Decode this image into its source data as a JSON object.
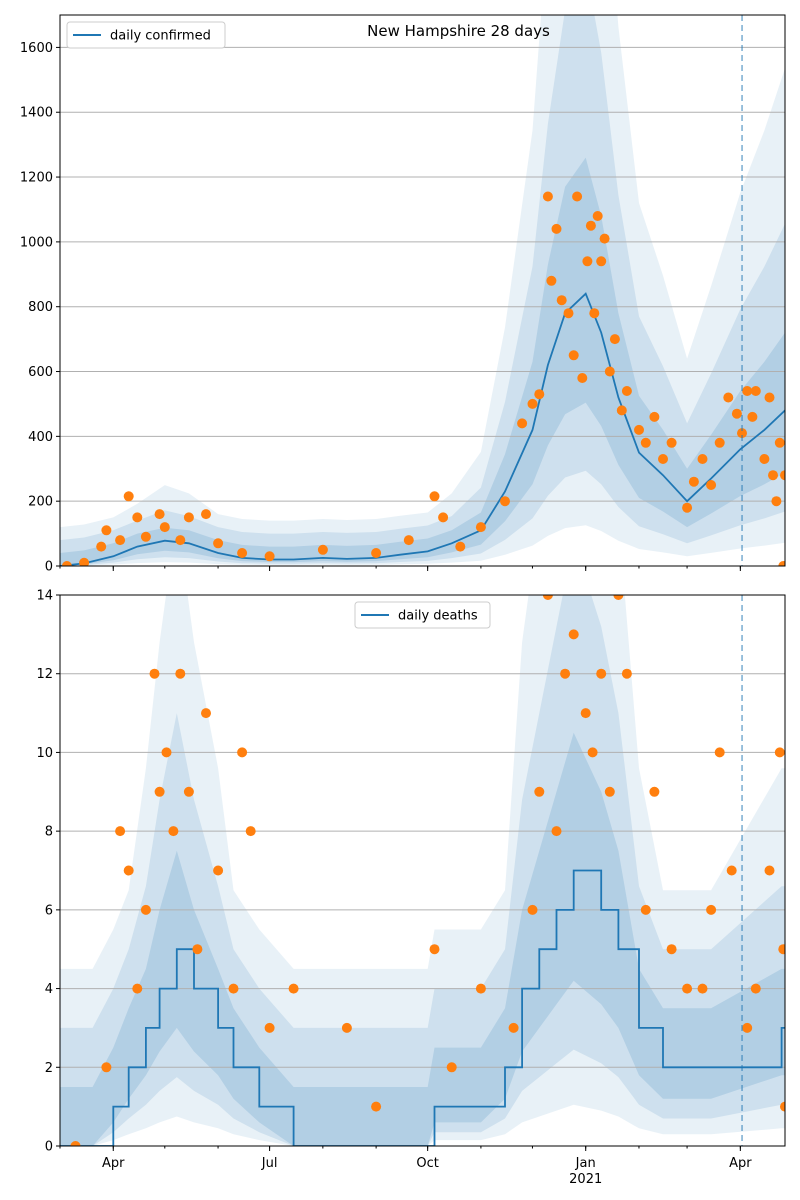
{
  "chart_data": [
    {
      "type": "line",
      "title": "New Hampshire 28 days",
      "legend": {
        "placement": "top-left",
        "entries": [
          "daily confirmed"
        ]
      },
      "ylim": [
        0,
        1700
      ],
      "yticks": [
        0,
        200,
        400,
        600,
        800,
        1000,
        1200,
        1400,
        1600
      ],
      "grid": "horizontal",
      "x_range": [
        "2020-03-01",
        "2021-04-27"
      ],
      "xticks": [
        {
          "date": "2020-04-01",
          "label": "Apr"
        },
        {
          "date": "2020-07-01",
          "label": "Jul"
        },
        {
          "date": "2020-10-01",
          "label": "Oct"
        },
        {
          "date": "2021-01-01",
          "label": "Jan"
        },
        {
          "date": "2021-04-01",
          "label": "Apr"
        }
      ],
      "year_label": "2021",
      "vline_date": "2021-04-02",
      "series": [
        {
          "name": "daily confirmed",
          "kind": "line",
          "color": "#1f77b4",
          "points": [
            [
              "2020-03-01",
              0
            ],
            [
              "2020-03-15",
              8
            ],
            [
              "2020-04-01",
              30
            ],
            [
              "2020-04-15",
              60
            ],
            [
              "2020-05-01",
              78
            ],
            [
              "2020-05-15",
              70
            ],
            [
              "2020-06-01",
              40
            ],
            [
              "2020-06-15",
              25
            ],
            [
              "2020-07-01",
              20
            ],
            [
              "2020-07-15",
              20
            ],
            [
              "2020-08-01",
              25
            ],
            [
              "2020-08-15",
              22
            ],
            [
              "2020-09-01",
              25
            ],
            [
              "2020-09-15",
              35
            ],
            [
              "2020-10-01",
              45
            ],
            [
              "2020-10-15",
              70
            ],
            [
              "2020-11-01",
              110
            ],
            [
              "2020-11-15",
              230
            ],
            [
              "2020-12-01",
              420
            ],
            [
              "2020-12-10",
              620
            ],
            [
              "2020-12-20",
              780
            ],
            [
              "2021-01-01",
              840
            ],
            [
              "2021-01-10",
              720
            ],
            [
              "2021-01-20",
              520
            ],
            [
              "2021-02-01",
              350
            ],
            [
              "2021-02-15",
              280
            ],
            [
              "2021-03-01",
              200
            ],
            [
              "2021-03-15",
              270
            ],
            [
              "2021-04-01",
              360
            ],
            [
              "2021-04-15",
              420
            ],
            [
              "2021-04-27",
              480
            ]
          ]
        },
        {
          "name": "",
          "kind": "scatter",
          "color": "#ff7f0e",
          "points": [
            [
              "2020-03-05",
              0
            ],
            [
              "2020-03-15",
              10
            ],
            [
              "2020-03-25",
              60
            ],
            [
              "2020-03-28",
              110
            ],
            [
              "2020-04-05",
              80
            ],
            [
              "2020-04-10",
              215
            ],
            [
              "2020-04-15",
              150
            ],
            [
              "2020-04-20",
              90
            ],
            [
              "2020-04-28",
              160
            ],
            [
              "2020-05-01",
              120
            ],
            [
              "2020-05-10",
              80
            ],
            [
              "2020-05-15",
              150
            ],
            [
              "2020-05-25",
              160
            ],
            [
              "2020-06-01",
              70
            ],
            [
              "2020-06-15",
              40
            ],
            [
              "2020-07-01",
              30
            ],
            [
              "2020-08-01",
              50
            ],
            [
              "2020-09-01",
              40
            ],
            [
              "2020-09-20",
              80
            ],
            [
              "2020-10-05",
              215
            ],
            [
              "2020-10-10",
              150
            ],
            [
              "2020-10-20",
              60
            ],
            [
              "2020-11-01",
              120
            ],
            [
              "2020-11-15",
              200
            ],
            [
              "2020-11-25",
              440
            ],
            [
              "2020-12-01",
              500
            ],
            [
              "2020-12-05",
              530
            ],
            [
              "2020-12-10",
              1140
            ],
            [
              "2020-12-12",
              880
            ],
            [
              "2020-12-15",
              1040
            ],
            [
              "2020-12-18",
              820
            ],
            [
              "2020-12-22",
              780
            ],
            [
              "2020-12-25",
              650
            ],
            [
              "2020-12-27",
              1140
            ],
            [
              "2020-12-30",
              580
            ],
            [
              "2021-01-02",
              940
            ],
            [
              "2021-01-04",
              1050
            ],
            [
              "2021-01-06",
              780
            ],
            [
              "2021-01-08",
              1080
            ],
            [
              "2021-01-10",
              940
            ],
            [
              "2021-01-12",
              1010
            ],
            [
              "2021-01-15",
              600
            ],
            [
              "2021-01-18",
              700
            ],
            [
              "2021-01-22",
              480
            ],
            [
              "2021-01-25",
              540
            ],
            [
              "2021-02-01",
              420
            ],
            [
              "2021-02-05",
              380
            ],
            [
              "2021-02-10",
              460
            ],
            [
              "2021-02-15",
              330
            ],
            [
              "2021-02-20",
              380
            ],
            [
              "2021-03-01",
              180
            ],
            [
              "2021-03-05",
              260
            ],
            [
              "2021-03-10",
              330
            ],
            [
              "2021-03-15",
              250
            ],
            [
              "2021-03-20",
              380
            ],
            [
              "2021-03-25",
              520
            ],
            [
              "2021-03-30",
              470
            ],
            [
              "2021-04-02",
              410
            ],
            [
              "2021-04-05",
              540
            ],
            [
              "2021-04-08",
              460
            ],
            [
              "2021-04-10",
              540
            ],
            [
              "2021-04-15",
              330
            ],
            [
              "2021-04-18",
              520
            ],
            [
              "2021-04-20",
              280
            ],
            [
              "2021-04-22",
              200
            ],
            [
              "2021-04-24",
              380
            ],
            [
              "2021-04-26",
              0
            ],
            [
              "2021-04-27",
              280
            ]
          ]
        }
      ]
    },
    {
      "type": "line",
      "title": "",
      "legend": {
        "placement": "top-center",
        "entries": [
          "daily deaths"
        ]
      },
      "ylim": [
        0,
        14
      ],
      "yticks": [
        0,
        2,
        4,
        6,
        8,
        10,
        12,
        14
      ],
      "grid": "horizontal",
      "x_range": [
        "2020-03-01",
        "2021-04-27"
      ],
      "xticks": [
        {
          "date": "2020-04-01",
          "label": "Apr"
        },
        {
          "date": "2020-07-01",
          "label": "Jul"
        },
        {
          "date": "2020-10-01",
          "label": "Oct"
        },
        {
          "date": "2021-01-01",
          "label": "Jan"
        },
        {
          "date": "2021-04-01",
          "label": "Apr"
        }
      ],
      "year_label": "2021",
      "vline_date": "2021-04-02",
      "series": [
        {
          "name": "daily deaths",
          "kind": "step",
          "color": "#1f77b4",
          "points": [
            [
              "2020-03-01",
              0
            ],
            [
              "2020-03-20",
              0
            ],
            [
              "2020-04-01",
              1
            ],
            [
              "2020-04-10",
              2
            ],
            [
              "2020-04-20",
              3
            ],
            [
              "2020-04-28",
              4
            ],
            [
              "2020-05-08",
              5
            ],
            [
              "2020-05-18",
              4
            ],
            [
              "2020-06-01",
              3
            ],
            [
              "2020-06-10",
              2
            ],
            [
              "2020-06-25",
              1
            ],
            [
              "2020-07-15",
              0
            ],
            [
              "2020-08-01",
              0
            ],
            [
              "2020-10-01",
              0
            ],
            [
              "2020-10-05",
              1
            ],
            [
              "2020-11-01",
              1
            ],
            [
              "2020-11-15",
              2
            ],
            [
              "2020-11-25",
              4
            ],
            [
              "2020-12-05",
              5
            ],
            [
              "2020-12-15",
              6
            ],
            [
              "2020-12-25",
              7
            ],
            [
              "2021-01-10",
              6
            ],
            [
              "2021-01-20",
              5
            ],
            [
              "2021-02-01",
              3
            ],
            [
              "2021-02-15",
              2
            ],
            [
              "2021-03-15",
              2
            ],
            [
              "2021-04-25",
              3
            ],
            [
              "2021-04-27",
              3
            ]
          ]
        },
        {
          "name": "",
          "kind": "scatter",
          "color": "#ff7f0e",
          "points": [
            [
              "2020-03-10",
              0
            ],
            [
              "2020-03-28",
              2
            ],
            [
              "2020-04-05",
              8
            ],
            [
              "2020-04-10",
              7
            ],
            [
              "2020-04-15",
              4
            ],
            [
              "2020-04-20",
              6
            ],
            [
              "2020-04-25",
              12
            ],
            [
              "2020-04-28",
              9
            ],
            [
              "2020-05-02",
              10
            ],
            [
              "2020-05-06",
              8
            ],
            [
              "2020-05-10",
              12
            ],
            [
              "2020-05-15",
              9
            ],
            [
              "2020-05-20",
              5
            ],
            [
              "2020-05-25",
              11
            ],
            [
              "2020-06-01",
              7
            ],
            [
              "2020-06-10",
              4
            ],
            [
              "2020-06-15",
              10
            ],
            [
              "2020-06-20",
              8
            ],
            [
              "2020-07-01",
              3
            ],
            [
              "2020-07-15",
              4
            ],
            [
              "2020-08-15",
              3
            ],
            [
              "2020-09-01",
              1
            ],
            [
              "2020-10-05",
              5
            ],
            [
              "2020-10-15",
              2
            ],
            [
              "2020-11-01",
              4
            ],
            [
              "2020-11-20",
              3
            ],
            [
              "2020-12-01",
              6
            ],
            [
              "2020-12-05",
              9
            ],
            [
              "2020-12-10",
              14
            ],
            [
              "2020-12-15",
              8
            ],
            [
              "2020-12-20",
              12
            ],
            [
              "2020-12-25",
              13
            ],
            [
              "2021-01-01",
              11
            ],
            [
              "2021-01-05",
              10
            ],
            [
              "2021-01-10",
              12
            ],
            [
              "2021-01-15",
              9
            ],
            [
              "2021-01-20",
              14
            ],
            [
              "2021-01-25",
              12
            ],
            [
              "2021-02-05",
              6
            ],
            [
              "2021-02-10",
              9
            ],
            [
              "2021-02-20",
              5
            ],
            [
              "2021-03-01",
              4
            ],
            [
              "2021-03-10",
              4
            ],
            [
              "2021-03-15",
              6
            ],
            [
              "2021-03-20",
              10
            ],
            [
              "2021-03-27",
              7
            ],
            [
              "2021-04-05",
              3
            ],
            [
              "2021-04-10",
              4
            ],
            [
              "2021-04-18",
              7
            ],
            [
              "2021-04-24",
              10
            ],
            [
              "2021-04-26",
              5
            ],
            [
              "2021-04-27",
              1
            ]
          ]
        }
      ]
    }
  ]
}
